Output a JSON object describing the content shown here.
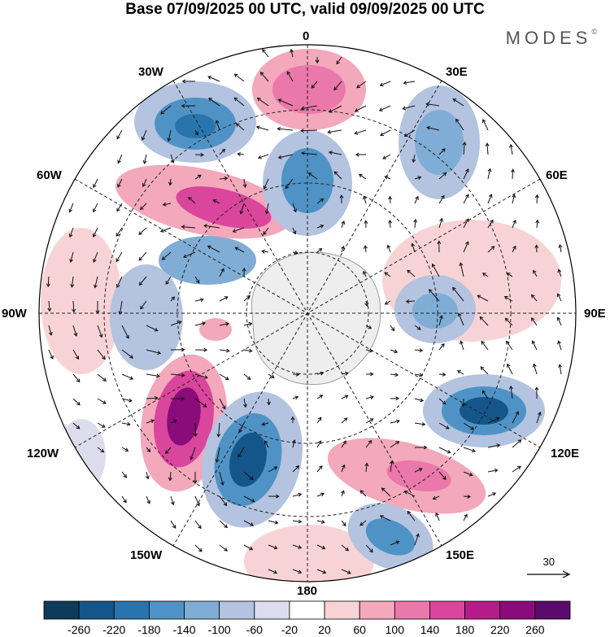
{
  "header": {
    "title": "Base 07/09/2025 00 UTC, valid 09/09/2025 00 UTC",
    "brand": "MODES"
  },
  "map": {
    "projection": "south polar stereographic",
    "longitude_labels": {
      "top": "0",
      "top_right": "30E",
      "right_upper": "60E",
      "right": "90E",
      "right_lower": "120E",
      "bottom_right": "150E",
      "bottom": "180",
      "bottom_left": "150W",
      "left_lower": "120W",
      "left": "90W",
      "left_upper": "60W",
      "top_left": "30W"
    },
    "field": "geopotential height anomaly with wind vectors",
    "vector_scale_label": "30"
  },
  "colorbar": {
    "ticks": [
      "-260",
      "-220",
      "-180",
      "-140",
      "-100",
      "-60",
      "-20",
      "20",
      "60",
      "100",
      "140",
      "180",
      "220",
      "260"
    ],
    "colors": [
      "#0e3a5c",
      "#15568a",
      "#2a74ad",
      "#4f93c6",
      "#7fadd6",
      "#b3c3e0",
      "#dcdcec",
      "#ffffff",
      "#f8d3d6",
      "#f3a8bb",
      "#eb78aa",
      "#d9469c",
      "#b41c89",
      "#8a0b7a",
      "#5b0b6b"
    ]
  }
}
